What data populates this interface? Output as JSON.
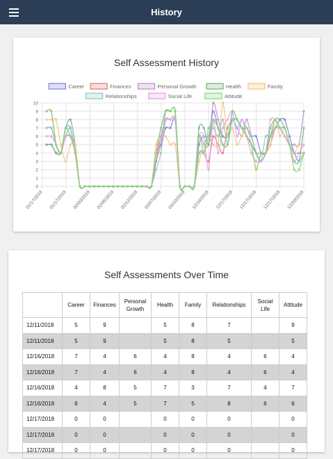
{
  "appbar": {
    "title": "History"
  },
  "chart_card": {
    "title": "Self Assessment History"
  },
  "table_card": {
    "title": "Self Assessments Over Time"
  },
  "colors": {
    "header": "#2c3e55",
    "series": [
      "#7b7bea",
      "#e57373",
      "#b88ec8",
      "#6fb27b",
      "#f2c27d",
      "#8cc5c1",
      "#e79ae5",
      "#7ddc72"
    ]
  },
  "chart_data": {
    "type": "line",
    "title": "Self Assessment History",
    "ylim": [
      0,
      10
    ],
    "yticks": [
      0,
      1,
      2,
      3,
      4,
      5,
      6,
      7,
      8,
      9,
      10
    ],
    "xtick_labels": [
      "01/17/2019",
      "01/17/2019",
      "02/03/2019",
      "02/05/2019",
      "02/12/2019",
      "03/07/2019",
      "03/10/2019",
      "12/16/2018",
      "12/17/2018",
      "12/17/2018",
      "12/17/2018",
      "12/20/2018"
    ],
    "legend_position": "top",
    "grid": true,
    "series": [
      {
        "name": "Career",
        "values": [
          5,
          5,
          4,
          4,
          7,
          7,
          4,
          0,
          0,
          0,
          0,
          0,
          0,
          0,
          0,
          0,
          0,
          0,
          0,
          0,
          0,
          0,
          0,
          4,
          5,
          7,
          7,
          8,
          0,
          0,
          0,
          0,
          5,
          6,
          6,
          9,
          7,
          5,
          5,
          9,
          8,
          7,
          7,
          6,
          6,
          4,
          4,
          6,
          7,
          8,
          8,
          6,
          4,
          3,
          4
        ]
      },
      {
        "name": "Finances",
        "values": [
          9,
          9,
          5,
          4,
          6,
          6,
          5,
          0,
          0,
          0,
          0,
          0,
          0,
          0,
          0,
          0,
          0,
          0,
          0,
          0,
          0,
          0,
          0,
          3,
          6,
          8,
          8,
          8,
          0,
          0,
          0,
          0,
          4,
          4,
          3,
          6,
          5,
          4,
          7,
          8,
          8,
          7,
          6,
          5,
          4,
          4,
          4,
          5,
          7,
          7,
          7,
          5,
          4,
          4,
          4
        ]
      },
      {
        "name": "Personal Growth",
        "values": [
          7,
          7,
          5,
          4,
          7,
          6,
          4,
          0,
          0,
          0,
          0,
          0,
          0,
          0,
          0,
          0,
          0,
          0,
          0,
          0,
          0,
          0,
          0,
          3,
          5,
          9,
          9,
          9,
          0,
          0,
          0,
          0,
          6,
          5,
          5,
          10,
          8,
          6,
          6,
          8,
          7,
          6,
          8,
          6,
          4,
          3,
          4,
          7,
          8,
          7,
          6,
          5,
          5,
          5,
          9
        ]
      },
      {
        "name": "Health",
        "values": [
          5,
          5,
          4,
          4,
          7,
          8,
          5,
          0,
          0,
          0,
          0,
          0,
          0,
          0,
          0,
          0,
          0,
          0,
          0,
          0,
          0,
          0,
          0,
          4,
          7,
          9,
          9,
          9,
          0,
          0,
          0,
          0,
          7,
          7,
          5,
          8,
          7,
          6,
          6,
          8,
          8,
          7,
          6,
          5,
          4,
          3,
          4,
          6,
          8,
          8,
          7,
          5,
          3,
          3,
          7
        ]
      },
      {
        "name": "Family",
        "values": [
          8,
          8,
          8,
          5,
          3,
          5,
          5,
          0,
          0,
          0,
          0,
          0,
          0,
          0,
          0,
          0,
          0,
          0,
          0,
          0,
          0,
          0,
          0,
          5,
          6,
          6,
          5,
          5,
          0,
          0,
          0,
          0,
          3,
          5,
          6,
          5,
          5,
          10,
          6,
          7,
          5,
          6,
          7,
          5,
          2,
          4,
          4,
          5,
          8,
          6,
          7,
          5,
          4,
          5,
          5
        ]
      },
      {
        "name": "Relationships",
        "values": [
          7,
          7,
          5,
          4,
          6,
          7,
          4,
          0,
          0,
          0,
          0,
          0,
          0,
          0,
          0,
          0,
          0,
          0,
          0,
          0,
          0,
          0,
          0,
          2,
          4,
          8,
          8,
          8,
          0,
          0,
          0,
          0,
          4,
          4,
          7,
          7,
          6,
          8,
          5,
          8,
          7,
          8,
          7,
          6,
          4,
          3,
          6,
          6,
          7,
          7,
          6,
          5,
          4,
          3,
          4
        ]
      },
      {
        "name": "Social Life",
        "values": [
          6,
          6,
          5,
          4,
          6,
          6,
          4,
          0,
          0,
          0,
          0,
          0,
          0,
          0,
          0,
          0,
          0,
          0,
          0,
          0,
          0,
          0,
          0,
          4,
          6,
          8,
          8,
          8,
          0,
          0,
          0,
          0,
          6,
          6,
          2,
          8,
          4,
          7,
          8,
          9,
          6,
          8,
          6,
          4,
          3,
          3,
          4,
          8,
          8,
          7,
          6,
          5,
          3,
          4,
          5
        ]
      },
      {
        "name": "Attitude",
        "values": [
          9,
          9,
          5,
          4,
          7,
          6,
          4,
          0,
          0,
          0,
          0,
          0,
          0,
          0,
          0,
          0,
          0,
          0,
          0,
          0,
          0,
          0,
          0,
          4,
          7,
          9,
          9,
          9,
          0,
          0,
          0,
          0,
          6,
          4,
          6,
          8,
          7,
          5,
          5,
          9,
          8,
          7,
          6,
          5,
          2,
          4,
          4,
          7,
          8,
          7,
          7,
          5,
          2,
          2,
          4
        ]
      }
    ]
  },
  "table": {
    "columns": [
      "",
      "Career",
      "Finances",
      "Personal Growth",
      "Health",
      "Family",
      "Relationships",
      "Social Life",
      "Attitude"
    ],
    "rows": [
      {
        "date": "12/11/2018",
        "cells": [
          "5",
          "9",
          "",
          "5",
          "8",
          "7",
          "",
          "9"
        ]
      },
      {
        "date": "12/11/2018",
        "cells": [
          "5",
          "9",
          "",
          "5",
          "8",
          "5",
          "",
          "5"
        ]
      },
      {
        "date": "12/16/2018",
        "cells": [
          "7",
          "4",
          "6",
          "4",
          "8",
          "4",
          "6",
          "4"
        ]
      },
      {
        "date": "12/16/2018",
        "cells": [
          "7",
          "4",
          "6",
          "4",
          "8",
          "4",
          "6",
          "4"
        ]
      },
      {
        "date": "12/16/2018",
        "cells": [
          "4",
          "8",
          "5",
          "7",
          "3",
          "7",
          "4",
          "7"
        ]
      },
      {
        "date": "12/16/2018",
        "cells": [
          "6",
          "4",
          "5",
          "7",
          "5",
          "8",
          "6",
          "6"
        ]
      },
      {
        "date": "12/17/2018",
        "cells": [
          "0",
          "0",
          "",
          "0",
          "0",
          "0",
          "",
          "0"
        ]
      },
      {
        "date": "12/17/2018",
        "cells": [
          "0",
          "0",
          "",
          "0",
          "0",
          "0",
          "",
          "0"
        ]
      },
      {
        "date": "12/17/2018",
        "cells": [
          "0",
          "0",
          "",
          "0",
          "0",
          "0",
          "",
          "0"
        ]
      }
    ]
  }
}
